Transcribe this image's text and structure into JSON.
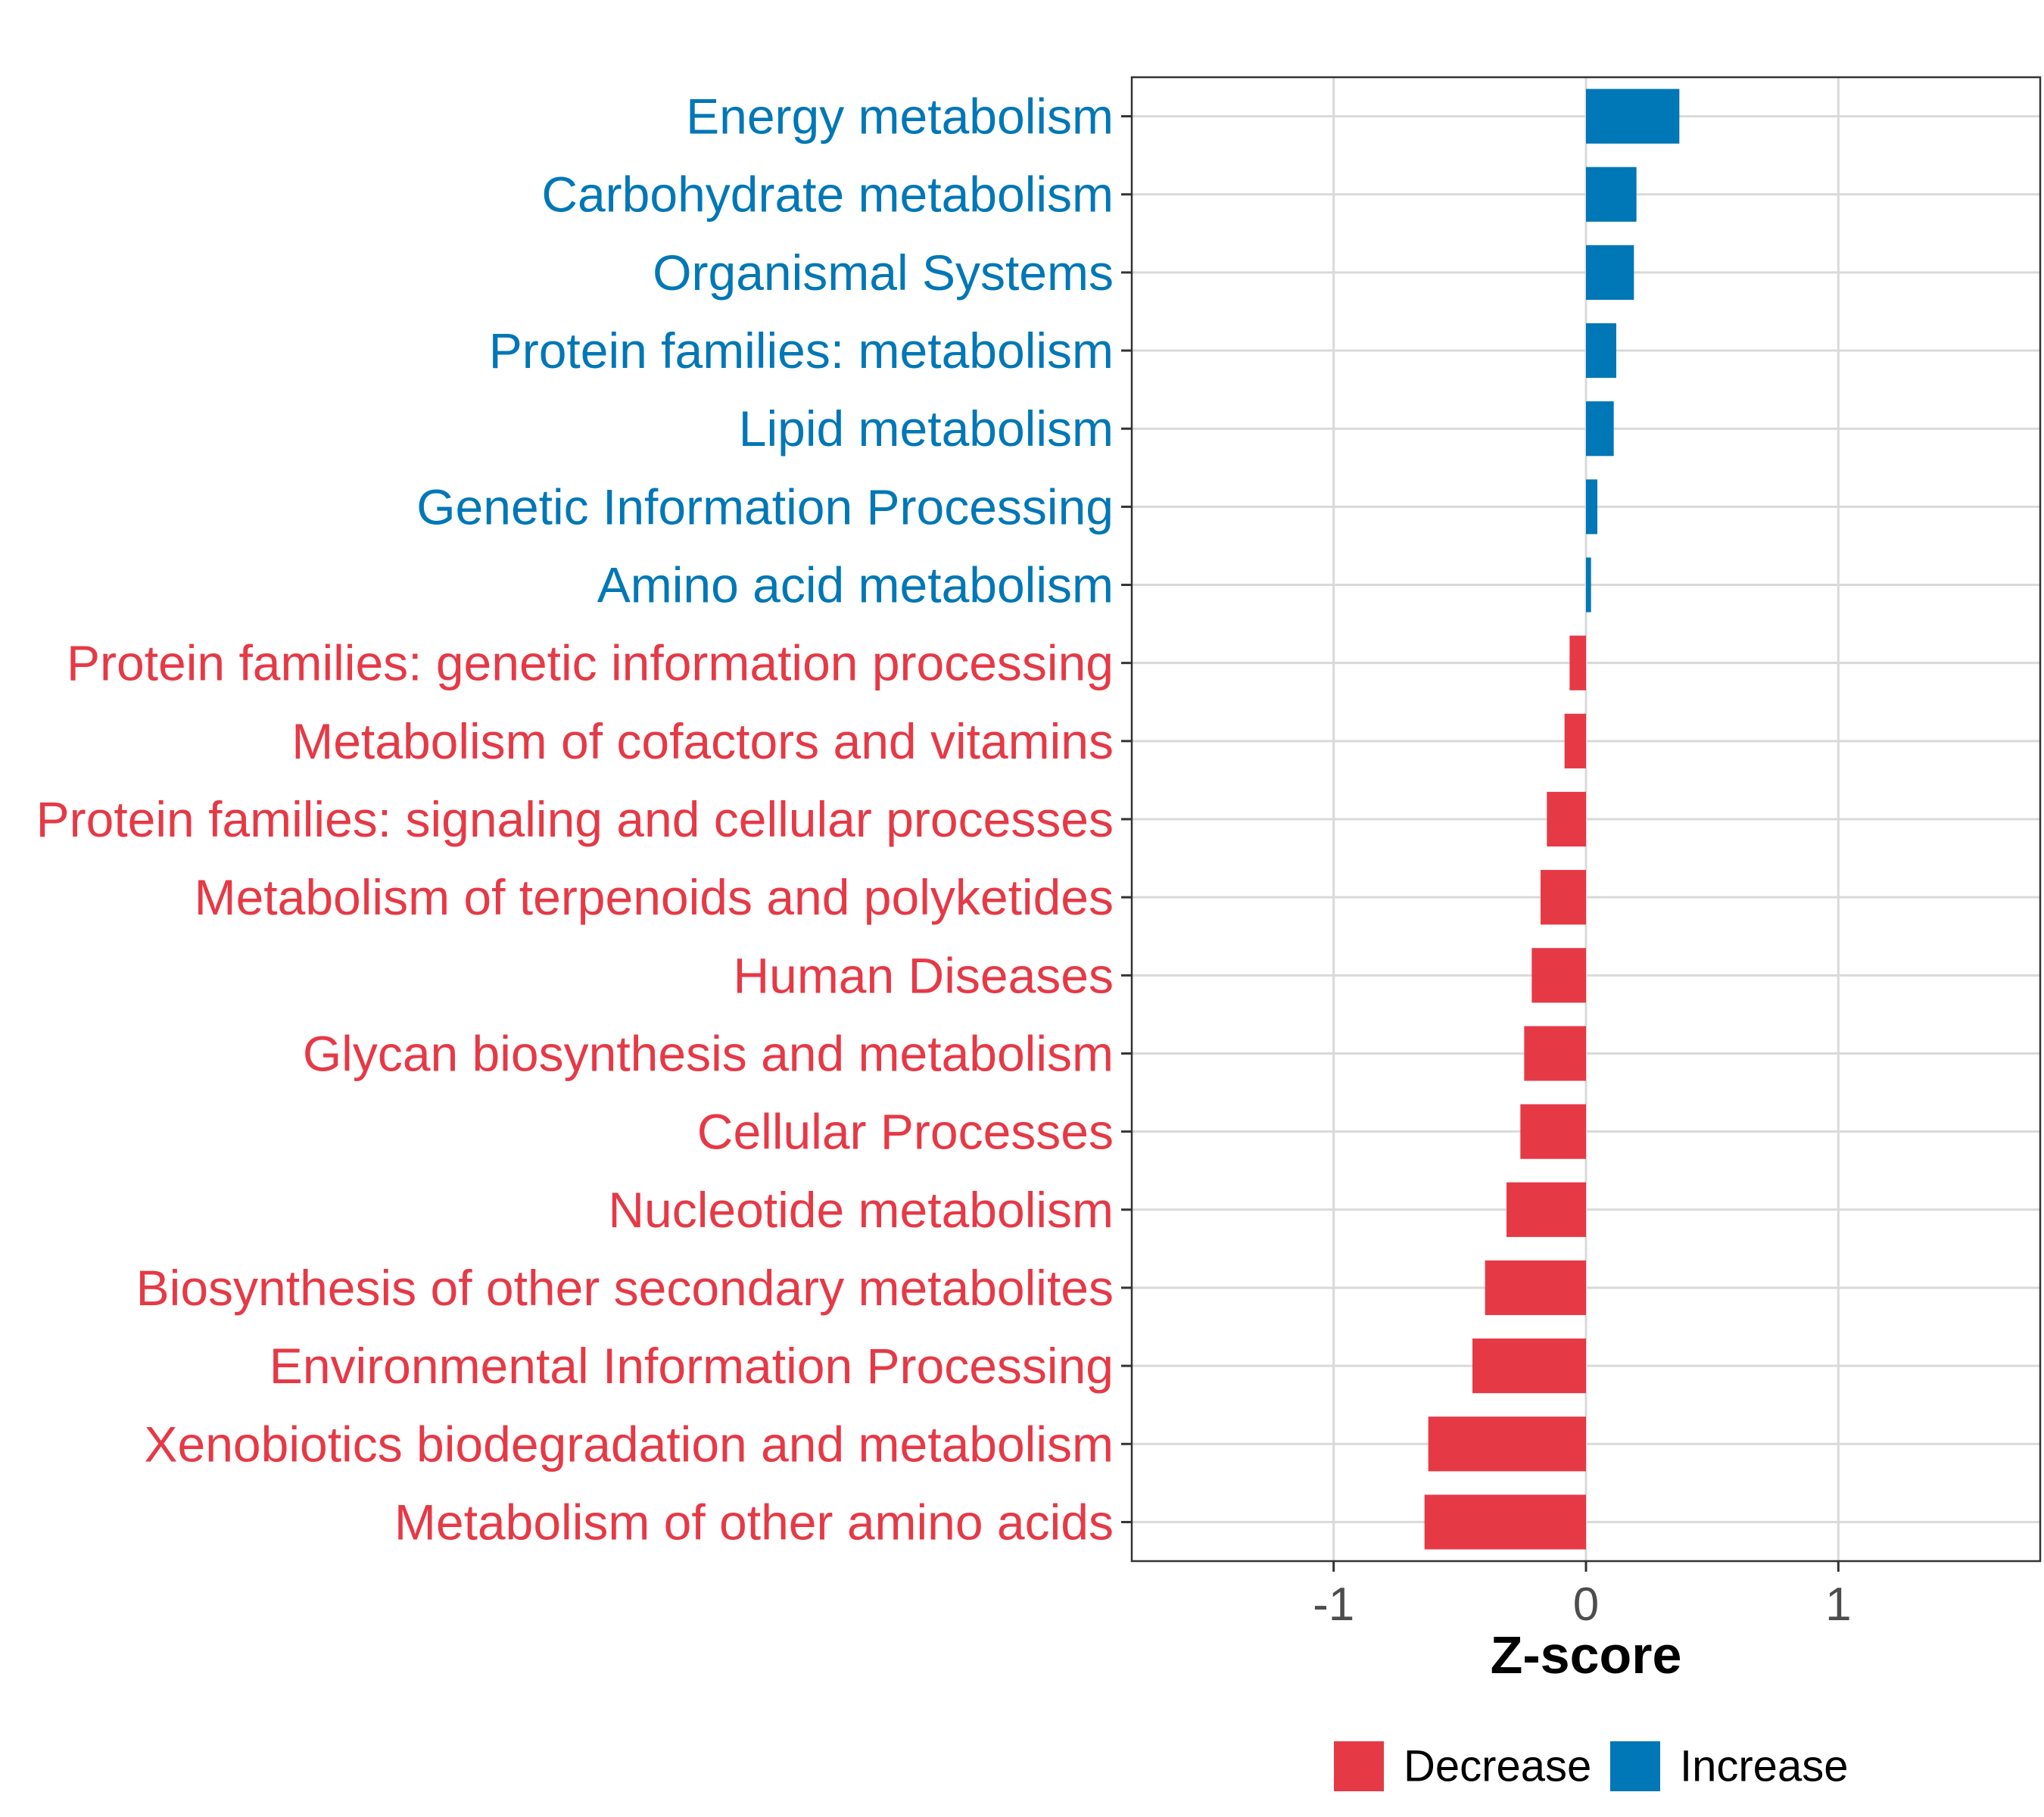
{
  "chart_data": {
    "type": "bar",
    "orientation": "horizontal",
    "title": "",
    "xlabel": "Z-score",
    "ylabel": "",
    "xlim": [
      -1.8,
      1.8
    ],
    "xticks": [
      -1,
      0,
      1
    ],
    "xtick_labels": [
      "-1",
      "0",
      "1"
    ],
    "grid": true,
    "categories": [
      "Energy metabolism",
      "Carbohydrate metabolism",
      "Organismal Systems",
      "Protein families: metabolism",
      "Lipid metabolism",
      "Genetic Information Processing",
      "Amino acid metabolism",
      "Protein families: genetic information processing",
      "Metabolism of cofactors and vitamins",
      "Protein families: signaling and cellular processes",
      "Metabolism of terpenoids and polyketides",
      "Human Diseases",
      "Glycan biosynthesis and metabolism",
      "Cellular Processes",
      "Nucleotide metabolism",
      "Biosynthesis of other secondary metabolites",
      "Environmental Information Processing",
      "Xenobiotics biodegradation and metabolism",
      "Metabolism of other amino acids"
    ],
    "values": [
      0.37,
      0.2,
      0.19,
      0.12,
      0.11,
      0.045,
      0.02,
      -0.065,
      -0.085,
      -0.155,
      -0.18,
      -0.215,
      -0.245,
      -0.26,
      -0.315,
      -0.4,
      -0.45,
      -0.625,
      -0.64
    ],
    "groups": [
      "Increase",
      "Increase",
      "Increase",
      "Increase",
      "Increase",
      "Increase",
      "Increase",
      "Decrease",
      "Decrease",
      "Decrease",
      "Decrease",
      "Decrease",
      "Decrease",
      "Decrease",
      "Decrease",
      "Decrease",
      "Decrease",
      "Decrease",
      "Decrease"
    ],
    "legend": {
      "position": "bottom",
      "entries": [
        {
          "label": "Decrease",
          "color": "#e63946"
        },
        {
          "label": "Increase",
          "color": "#0077b6"
        }
      ]
    },
    "colors": {
      "Decrease": "#e63946",
      "Increase": "#0077b6"
    }
  }
}
